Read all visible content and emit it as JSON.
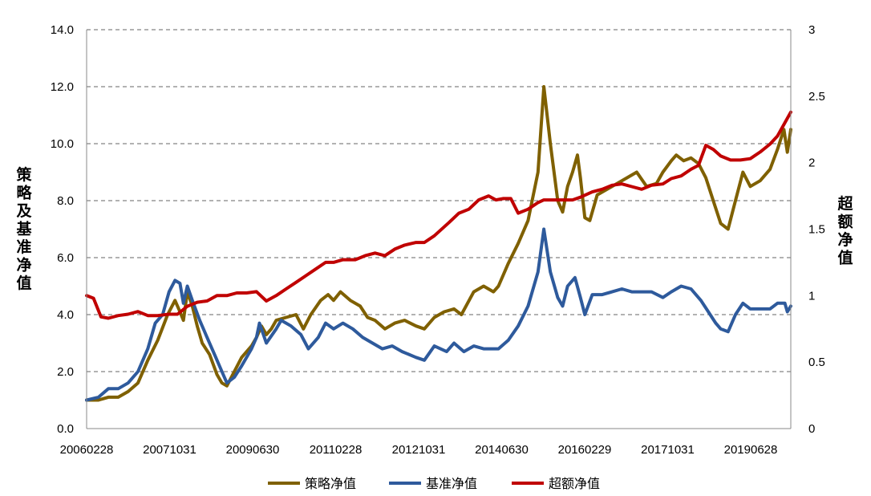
{
  "chart_data": {
    "type": "line",
    "title": "",
    "xlabel": "",
    "ylabel": "策略及基准净值",
    "ylabel_right": "超额净值",
    "x_ticks": [
      "20060228",
      "20071031",
      "20090630",
      "20110228",
      "20121031",
      "20140630",
      "20160229",
      "20171031",
      "20190628"
    ],
    "y_ticks_left": [
      "0.0",
      "2.0",
      "4.0",
      "6.0",
      "8.0",
      "10.0",
      "12.0",
      "14.0"
    ],
    "y_ticks_right": [
      "0",
      "0.5",
      "1",
      "1.5",
      "2",
      "2.5",
      "3"
    ],
    "ylim": [
      0,
      14
    ],
    "ylim_right": [
      0,
      3
    ],
    "grid": true,
    "legend_position": "bottom",
    "x_start": 2006.16,
    "x_end": 2020.42,
    "series": [
      {
        "name": "策略净值",
        "axis": "left",
        "color": "#7f6000",
        "points": [
          [
            2006.16,
            1.0
          ],
          [
            2006.4,
            1.0
          ],
          [
            2006.6,
            1.1
          ],
          [
            2006.8,
            1.1
          ],
          [
            2007.0,
            1.3
          ],
          [
            2007.2,
            1.6
          ],
          [
            2007.4,
            2.4
          ],
          [
            2007.6,
            3.1
          ],
          [
            2007.8,
            4.0
          ],
          [
            2007.95,
            4.5
          ],
          [
            2008.05,
            4.1
          ],
          [
            2008.12,
            3.8
          ],
          [
            2008.2,
            4.8
          ],
          [
            2008.3,
            4.3
          ],
          [
            2008.4,
            3.6
          ],
          [
            2008.5,
            3.0
          ],
          [
            2008.65,
            2.6
          ],
          [
            2008.8,
            1.9
          ],
          [
            2008.9,
            1.6
          ],
          [
            2009.0,
            1.5
          ],
          [
            2009.15,
            2.0
          ],
          [
            2009.3,
            2.5
          ],
          [
            2009.5,
            2.9
          ],
          [
            2009.6,
            3.2
          ],
          [
            2009.7,
            3.6
          ],
          [
            2009.8,
            3.3
          ],
          [
            2009.9,
            3.5
          ],
          [
            2010.0,
            3.8
          ],
          [
            2010.2,
            3.9
          ],
          [
            2010.4,
            4.0
          ],
          [
            2010.55,
            3.5
          ],
          [
            2010.7,
            4.0
          ],
          [
            2010.9,
            4.5
          ],
          [
            2011.05,
            4.7
          ],
          [
            2011.16,
            4.5
          ],
          [
            2011.3,
            4.8
          ],
          [
            2011.5,
            4.5
          ],
          [
            2011.7,
            4.3
          ],
          [
            2011.85,
            3.9
          ],
          [
            2012.0,
            3.8
          ],
          [
            2012.2,
            3.5
          ],
          [
            2012.4,
            3.7
          ],
          [
            2012.6,
            3.8
          ],
          [
            2012.83,
            3.6
          ],
          [
            2013.0,
            3.5
          ],
          [
            2013.2,
            3.9
          ],
          [
            2013.4,
            4.1
          ],
          [
            2013.6,
            4.2
          ],
          [
            2013.75,
            4.0
          ],
          [
            2014.0,
            4.8
          ],
          [
            2014.2,
            5.0
          ],
          [
            2014.4,
            4.8
          ],
          [
            2014.5,
            5.0
          ],
          [
            2014.7,
            5.8
          ],
          [
            2014.9,
            6.5
          ],
          [
            2015.1,
            7.3
          ],
          [
            2015.3,
            9.0
          ],
          [
            2015.42,
            12.0
          ],
          [
            2015.55,
            10.0
          ],
          [
            2015.7,
            8.0
          ],
          [
            2015.8,
            7.6
          ],
          [
            2015.9,
            8.5
          ],
          [
            2016.0,
            9.0
          ],
          [
            2016.1,
            9.6
          ],
          [
            2016.16,
            8.8
          ],
          [
            2016.25,
            7.4
          ],
          [
            2016.35,
            7.3
          ],
          [
            2016.5,
            8.2
          ],
          [
            2016.7,
            8.4
          ],
          [
            2016.9,
            8.6
          ],
          [
            2017.1,
            8.8
          ],
          [
            2017.3,
            9.0
          ],
          [
            2017.5,
            8.5
          ],
          [
            2017.7,
            8.6
          ],
          [
            2017.83,
            9.0
          ],
          [
            2018.0,
            9.4
          ],
          [
            2018.1,
            9.6
          ],
          [
            2018.25,
            9.4
          ],
          [
            2018.4,
            9.5
          ],
          [
            2018.55,
            9.3
          ],
          [
            2018.7,
            8.8
          ],
          [
            2018.85,
            8.0
          ],
          [
            2019.0,
            7.2
          ],
          [
            2019.15,
            7.0
          ],
          [
            2019.3,
            8.0
          ],
          [
            2019.45,
            9.0
          ],
          [
            2019.6,
            8.5
          ],
          [
            2019.8,
            8.7
          ],
          [
            2020.0,
            9.1
          ],
          [
            2020.15,
            9.8
          ],
          [
            2020.28,
            10.5
          ],
          [
            2020.35,
            9.7
          ],
          [
            2020.42,
            10.5
          ]
        ]
      },
      {
        "name": "基准净值",
        "axis": "left",
        "color": "#2e5a9c",
        "points": [
          [
            2006.16,
            1.0
          ],
          [
            2006.4,
            1.1
          ],
          [
            2006.6,
            1.4
          ],
          [
            2006.8,
            1.4
          ],
          [
            2007.0,
            1.6
          ],
          [
            2007.2,
            2.0
          ],
          [
            2007.4,
            2.8
          ],
          [
            2007.55,
            3.7
          ],
          [
            2007.7,
            4.0
          ],
          [
            2007.83,
            4.8
          ],
          [
            2007.95,
            5.2
          ],
          [
            2008.05,
            5.1
          ],
          [
            2008.12,
            4.4
          ],
          [
            2008.2,
            5.0
          ],
          [
            2008.3,
            4.5
          ],
          [
            2008.45,
            3.8
          ],
          [
            2008.6,
            3.2
          ],
          [
            2008.75,
            2.6
          ],
          [
            2008.9,
            2.0
          ],
          [
            2009.0,
            1.6
          ],
          [
            2009.15,
            1.8
          ],
          [
            2009.3,
            2.2
          ],
          [
            2009.5,
            2.8
          ],
          [
            2009.6,
            3.2
          ],
          [
            2009.66,
            3.7
          ],
          [
            2009.8,
            3.0
          ],
          [
            2010.0,
            3.5
          ],
          [
            2010.1,
            3.8
          ],
          [
            2010.3,
            3.6
          ],
          [
            2010.5,
            3.3
          ],
          [
            2010.65,
            2.8
          ],
          [
            2010.85,
            3.2
          ],
          [
            2011.0,
            3.7
          ],
          [
            2011.16,
            3.5
          ],
          [
            2011.35,
            3.7
          ],
          [
            2011.55,
            3.5
          ],
          [
            2011.75,
            3.2
          ],
          [
            2011.95,
            3.0
          ],
          [
            2012.15,
            2.8
          ],
          [
            2012.35,
            2.9
          ],
          [
            2012.55,
            2.7
          ],
          [
            2012.83,
            2.5
          ],
          [
            2013.0,
            2.4
          ],
          [
            2013.2,
            2.9
          ],
          [
            2013.45,
            2.7
          ],
          [
            2013.6,
            3.0
          ],
          [
            2013.8,
            2.7
          ],
          [
            2014.0,
            2.9
          ],
          [
            2014.2,
            2.8
          ],
          [
            2014.5,
            2.8
          ],
          [
            2014.7,
            3.1
          ],
          [
            2014.9,
            3.6
          ],
          [
            2015.1,
            4.3
          ],
          [
            2015.3,
            5.5
          ],
          [
            2015.42,
            7.0
          ],
          [
            2015.55,
            5.5
          ],
          [
            2015.7,
            4.6
          ],
          [
            2015.8,
            4.3
          ],
          [
            2015.9,
            5.0
          ],
          [
            2016.05,
            5.3
          ],
          [
            2016.16,
            4.6
          ],
          [
            2016.25,
            4.0
          ],
          [
            2016.4,
            4.7
          ],
          [
            2016.6,
            4.7
          ],
          [
            2016.8,
            4.8
          ],
          [
            2017.0,
            4.9
          ],
          [
            2017.2,
            4.8
          ],
          [
            2017.4,
            4.8
          ],
          [
            2017.6,
            4.8
          ],
          [
            2017.83,
            4.6
          ],
          [
            2018.0,
            4.8
          ],
          [
            2018.2,
            5.0
          ],
          [
            2018.4,
            4.9
          ],
          [
            2018.6,
            4.5
          ],
          [
            2018.75,
            4.1
          ],
          [
            2018.9,
            3.7
          ],
          [
            2019.0,
            3.5
          ],
          [
            2019.15,
            3.4
          ],
          [
            2019.3,
            4.0
          ],
          [
            2019.45,
            4.4
          ],
          [
            2019.6,
            4.2
          ],
          [
            2019.8,
            4.2
          ],
          [
            2020.0,
            4.2
          ],
          [
            2020.15,
            4.4
          ],
          [
            2020.3,
            4.4
          ],
          [
            2020.35,
            4.1
          ],
          [
            2020.42,
            4.3
          ]
        ]
      },
      {
        "name": "超额净值",
        "axis": "right",
        "color": "#c00000",
        "points": [
          [
            2006.16,
            1.0
          ],
          [
            2006.3,
            0.98
          ],
          [
            2006.45,
            0.84
          ],
          [
            2006.6,
            0.83
          ],
          [
            2006.8,
            0.85
          ],
          [
            2007.0,
            0.86
          ],
          [
            2007.2,
            0.88
          ],
          [
            2007.4,
            0.85
          ],
          [
            2007.6,
            0.85
          ],
          [
            2007.83,
            0.86
          ],
          [
            2008.0,
            0.86
          ],
          [
            2008.2,
            0.92
          ],
          [
            2008.4,
            0.95
          ],
          [
            2008.6,
            0.96
          ],
          [
            2008.8,
            1.0
          ],
          [
            2009.0,
            1.0
          ],
          [
            2009.2,
            1.02
          ],
          [
            2009.4,
            1.02
          ],
          [
            2009.6,
            1.03
          ],
          [
            2009.8,
            0.96
          ],
          [
            2010.0,
            1.0
          ],
          [
            2010.2,
            1.05
          ],
          [
            2010.4,
            1.1
          ],
          [
            2010.6,
            1.15
          ],
          [
            2010.8,
            1.2
          ],
          [
            2011.0,
            1.25
          ],
          [
            2011.16,
            1.25
          ],
          [
            2011.35,
            1.27
          ],
          [
            2011.6,
            1.27
          ],
          [
            2011.8,
            1.3
          ],
          [
            2012.0,
            1.32
          ],
          [
            2012.2,
            1.3
          ],
          [
            2012.4,
            1.35
          ],
          [
            2012.6,
            1.38
          ],
          [
            2012.83,
            1.4
          ],
          [
            2013.0,
            1.4
          ],
          [
            2013.2,
            1.45
          ],
          [
            2013.5,
            1.55
          ],
          [
            2013.7,
            1.62
          ],
          [
            2013.9,
            1.65
          ],
          [
            2014.1,
            1.72
          ],
          [
            2014.3,
            1.75
          ],
          [
            2014.45,
            1.72
          ],
          [
            2014.6,
            1.73
          ],
          [
            2014.75,
            1.73
          ],
          [
            2014.9,
            1.62
          ],
          [
            2015.1,
            1.65
          ],
          [
            2015.3,
            1.7
          ],
          [
            2015.42,
            1.72
          ],
          [
            2015.6,
            1.72
          ],
          [
            2015.8,
            1.72
          ],
          [
            2016.0,
            1.72
          ],
          [
            2016.16,
            1.74
          ],
          [
            2016.4,
            1.78
          ],
          [
            2016.6,
            1.8
          ],
          [
            2016.8,
            1.83
          ],
          [
            2017.0,
            1.84
          ],
          [
            2017.2,
            1.82
          ],
          [
            2017.4,
            1.8
          ],
          [
            2017.6,
            1.83
          ],
          [
            2017.83,
            1.84
          ],
          [
            2018.0,
            1.88
          ],
          [
            2018.2,
            1.9
          ],
          [
            2018.4,
            1.95
          ],
          [
            2018.55,
            1.98
          ],
          [
            2018.7,
            2.13
          ],
          [
            2018.85,
            2.1
          ],
          [
            2019.0,
            2.05
          ],
          [
            2019.2,
            2.02
          ],
          [
            2019.4,
            2.02
          ],
          [
            2019.6,
            2.03
          ],
          [
            2019.8,
            2.08
          ],
          [
            2020.0,
            2.14
          ],
          [
            2020.15,
            2.2
          ],
          [
            2020.3,
            2.3
          ],
          [
            2020.42,
            2.38
          ]
        ]
      }
    ]
  }
}
